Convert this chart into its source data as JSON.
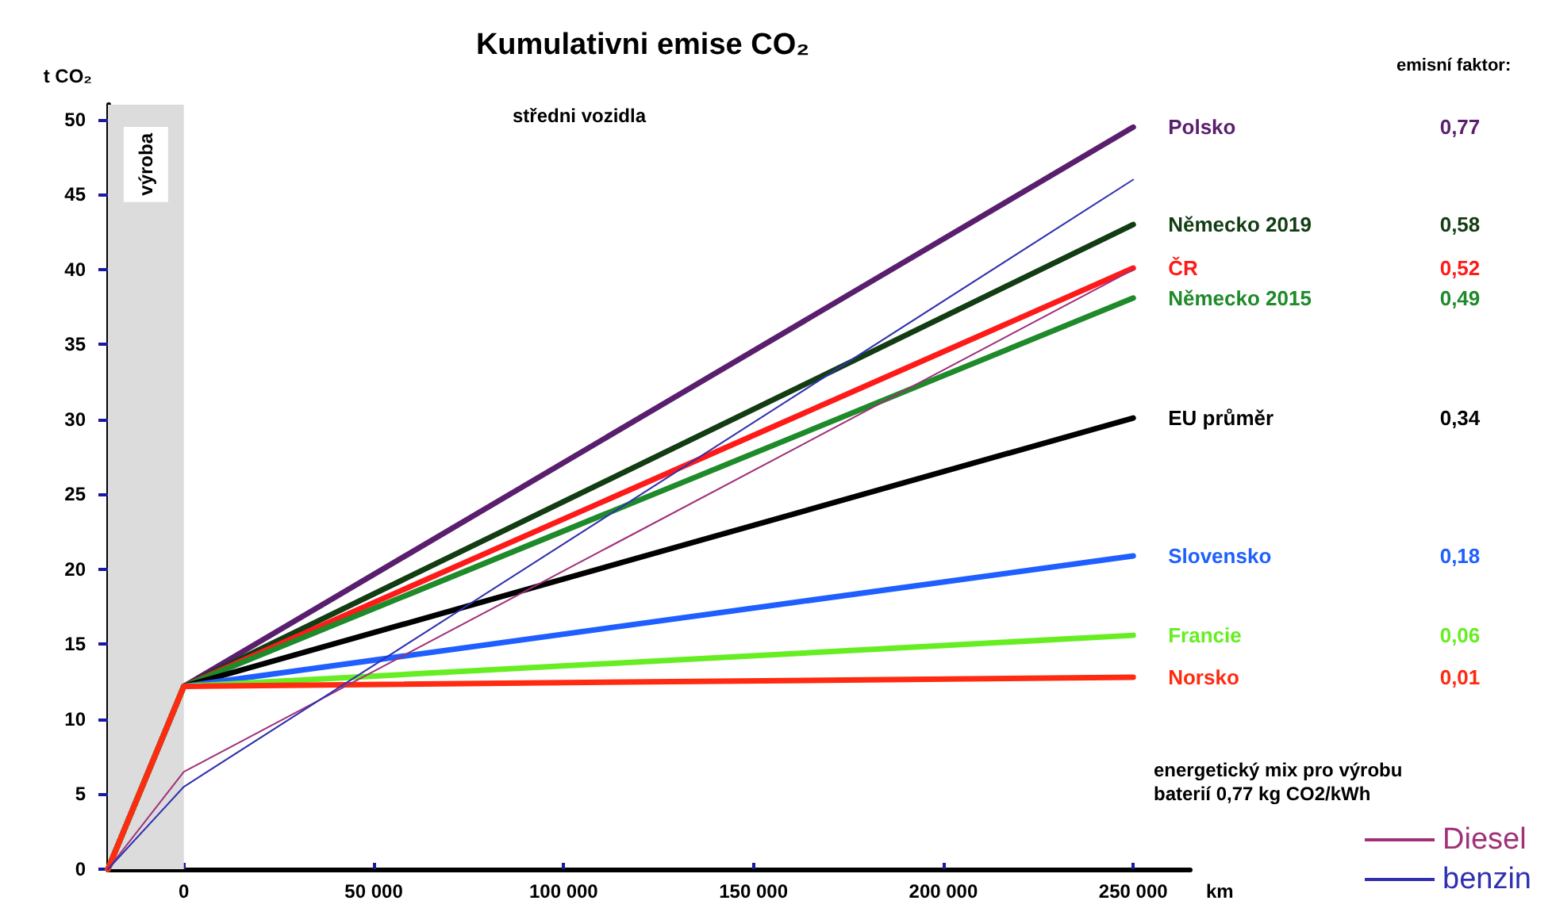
{
  "chart_data": {
    "type": "line",
    "title": "Kumulativni emise CO₂",
    "subtitle": "středni vozidla",
    "xlabel": "km",
    "ylabel": "t CO₂",
    "annotations": [
      "Polsko",
      "Německo 2019",
      "ČR",
      "Německo 2015",
      "EU průměr",
      "Slovensko",
      "Francie",
      "Norsko",
      "emisní faktor:",
      "0,77",
      "0,58",
      "0,52",
      "0,49",
      "0,34",
      "0,18",
      "0,06",
      "0,01",
      "energetický mix pro výrobu\nbaterií 0,77 kg CO2/kWh"
    ],
    "xlim": [
      -20000,
      265000
    ],
    "ylim": [
      0,
      51
    ],
    "xticks": [
      {
        "value": 0,
        "label": "0"
      },
      {
        "value": 50000,
        "label": "50 000"
      },
      {
        "value": 100000,
        "label": "100 000"
      },
      {
        "value": 150000,
        "label": "150 000"
      },
      {
        "value": 200000,
        "label": "200 000"
      },
      {
        "value": 250000,
        "label": "250 000"
      }
    ],
    "yticks": [
      0,
      5,
      10,
      15,
      20,
      25,
      30,
      35,
      40,
      45,
      50
    ],
    "bands": [
      {
        "axis": "x",
        "from": -20000,
        "to": 0,
        "label": "výroba",
        "color": "#dcdcdc"
      }
    ],
    "grid": false,
    "legend": "bottom right",
    "marker": "none",
    "line_style": "solid",
    "series": [
      {
        "color": "#5a1e6e",
        "x": [
          -20000,
          0,
          250000
        ],
        "values": [
          0,
          12.2,
          49.5
        ]
      },
      {
        "color": "#123c12",
        "x": [
          -20000,
          0,
          250000
        ],
        "values": [
          0,
          12.2,
          43
        ]
      },
      {
        "color": "#ff1a1a",
        "x": [
          -20000,
          0,
          250000
        ],
        "values": [
          0,
          12.2,
          40.1
        ]
      },
      {
        "color": "#1e8a2a",
        "x": [
          -20000,
          0,
          250000
        ],
        "values": [
          0,
          12.2,
          38.1
        ]
      },
      {
        "color": "#000000",
        "x": [
          -20000,
          0,
          250000
        ],
        "values": [
          0,
          12.2,
          30.1
        ]
      },
      {
        "color": "#1f5fff",
        "x": [
          -20000,
          0,
          250000
        ],
        "values": [
          0,
          12.2,
          20.9
        ]
      },
      {
        "color": "#66ee22",
        "x": [
          -20000,
          0,
          250000
        ],
        "values": [
          0,
          12.2,
          15.6
        ]
      },
      {
        "color": "#ff2a10",
        "x": [
          -20000,
          0,
          250000
        ],
        "values": [
          0,
          12.2,
          12.8
        ]
      },
      {
        "name": "Diesel",
        "color": "#a0307a",
        "x": [
          -20000,
          0,
          250000
        ],
        "values": [
          0,
          6.5,
          40
        ]
      },
      {
        "name": "benzin",
        "color": "#3030b0",
        "x": [
          -20000,
          0,
          250000
        ],
        "values": [
          0,
          5.5,
          46
        ]
      }
    ]
  }
}
